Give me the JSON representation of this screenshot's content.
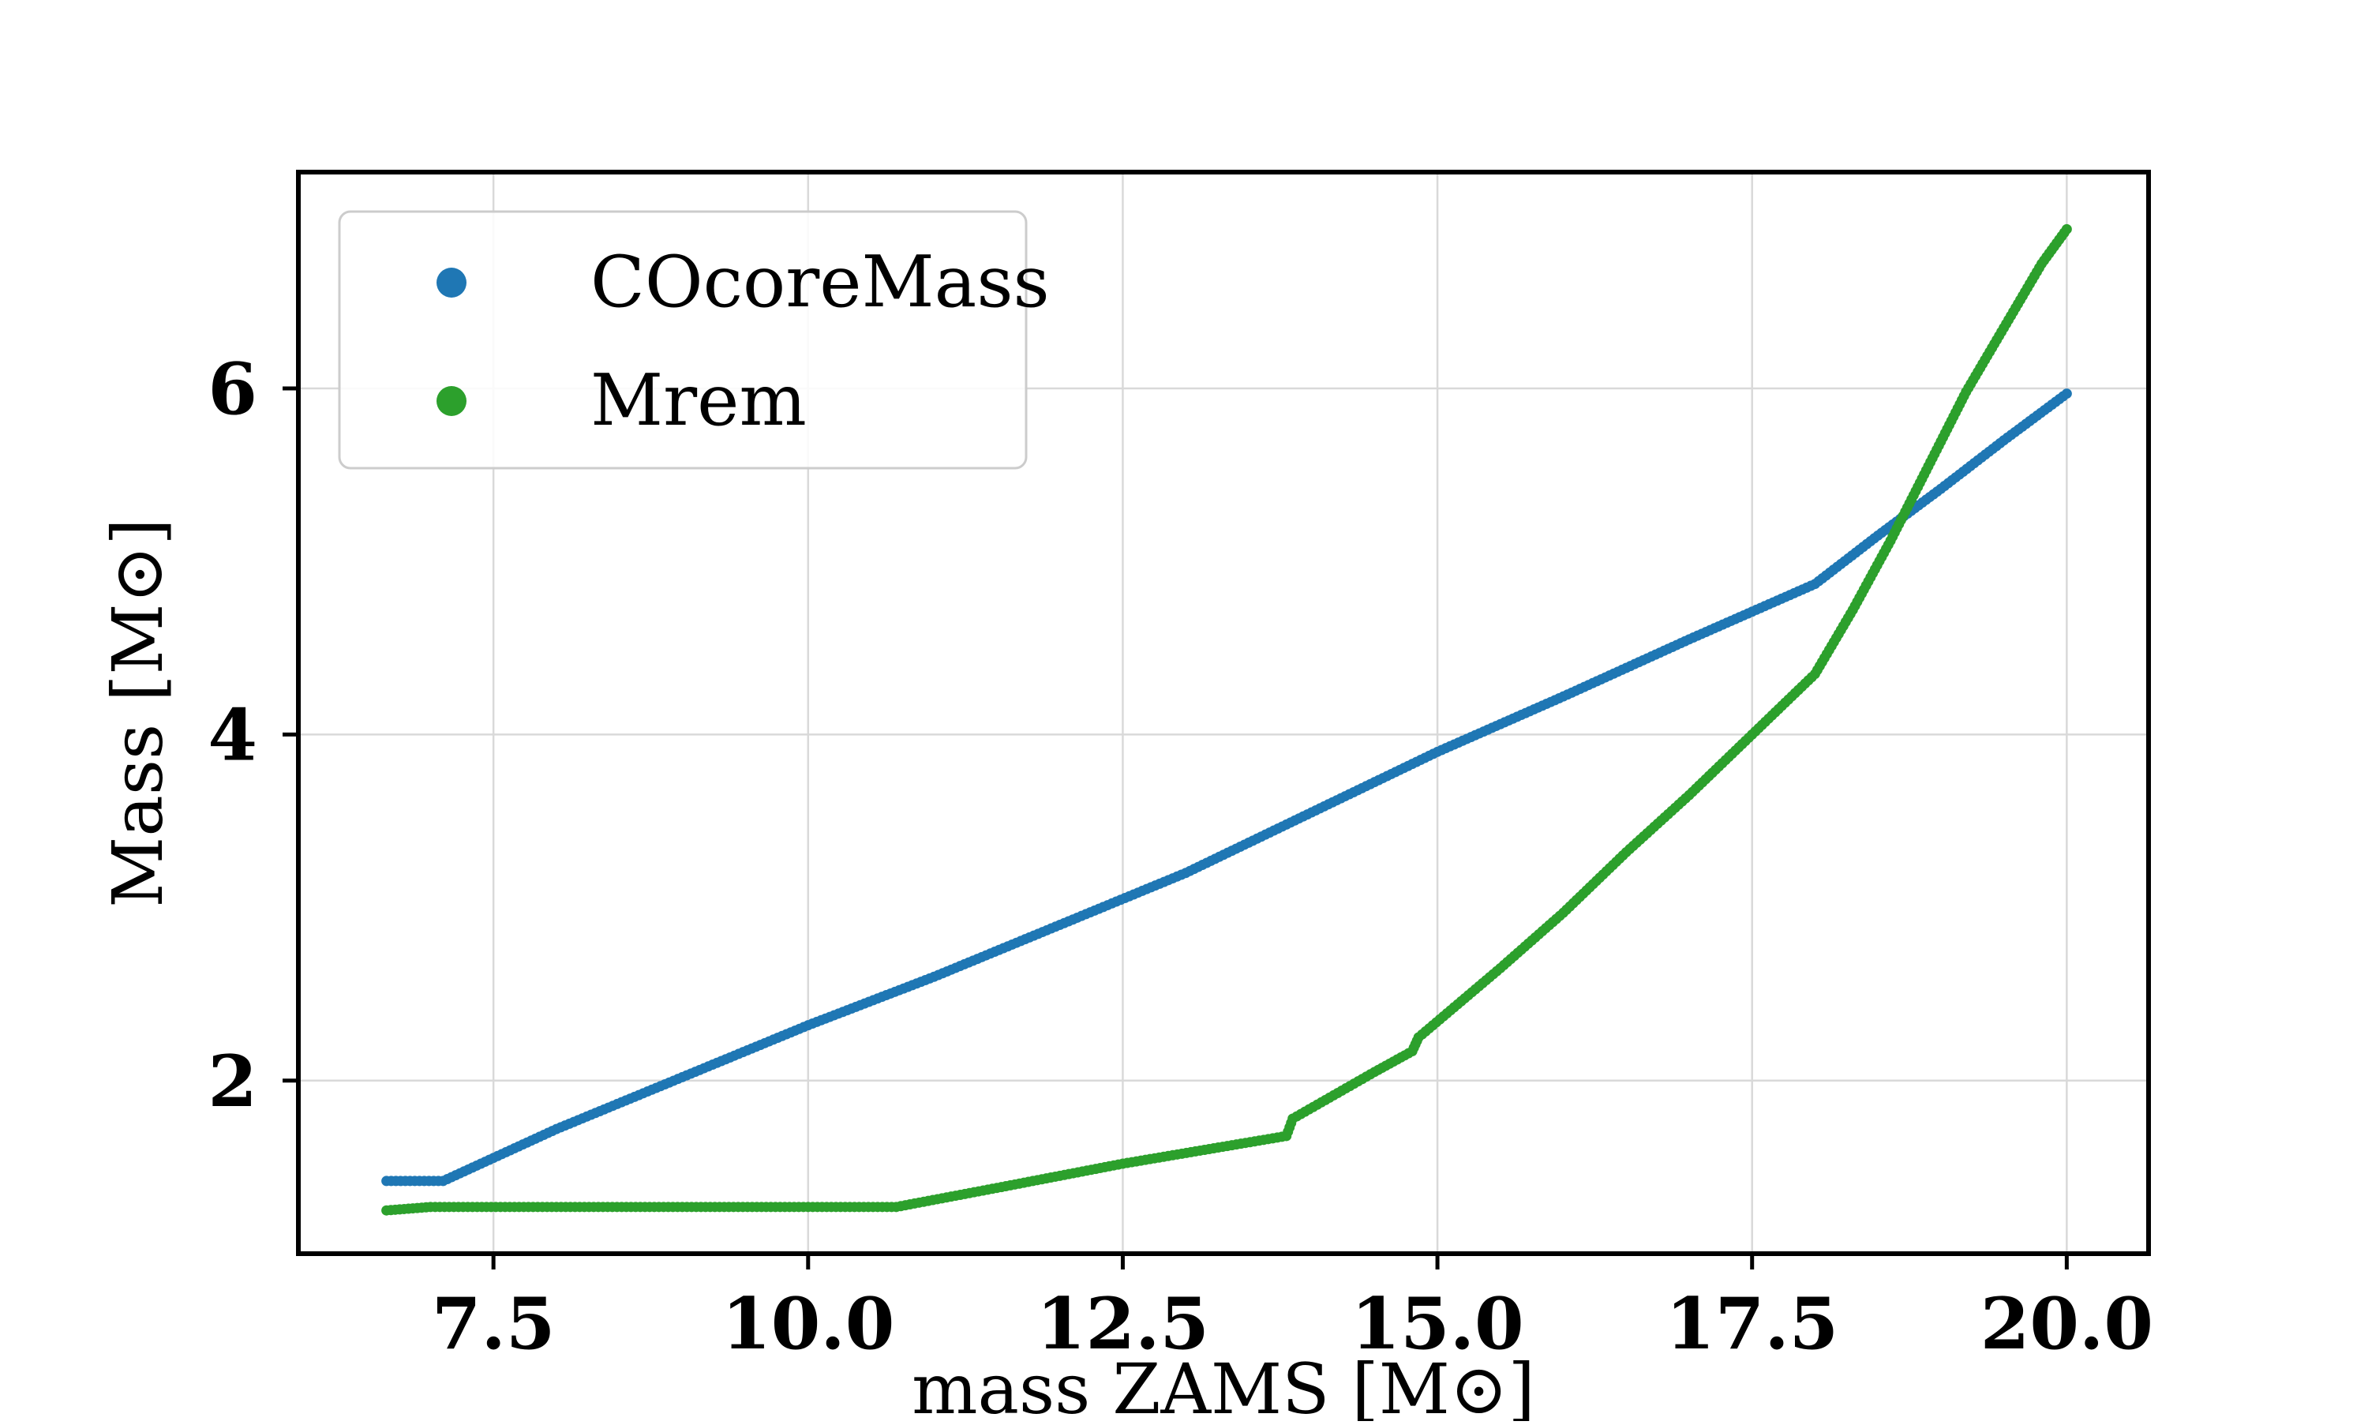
{
  "chart_data": {
    "type": "scatter",
    "xlabel": "mass ZAMS [M⊙]",
    "ylabel": "Mass [M⊙]",
    "xlim": [
      5.95,
      20.65
    ],
    "ylim": [
      1.0,
      7.25
    ],
    "x_ticks": [
      "7.5",
      "10.0",
      "12.5",
      "15.0",
      "17.5",
      "20.0"
    ],
    "y_ticks": [
      "2",
      "4",
      "6"
    ],
    "x_tick_values": [
      7.5,
      10.0,
      12.5,
      15.0,
      17.5,
      20.0
    ],
    "y_tick_values": [
      2,
      4,
      6
    ],
    "grid": true,
    "legend_position": "top-left",
    "series": [
      {
        "name": "COcoreMass",
        "color": "#1f77b4",
        "x": [
          6.65,
          7.1,
          8.0,
          9.0,
          10.0,
          11.0,
          12.0,
          13.0,
          14.0,
          15.0,
          16.0,
          17.0,
          18.0,
          18.5,
          19.0,
          19.5,
          20.0
        ],
        "y": [
          1.42,
          1.42,
          1.72,
          2.02,
          2.32,
          2.6,
          2.9,
          3.2,
          3.55,
          3.9,
          4.22,
          4.55,
          4.87,
          5.15,
          5.42,
          5.7,
          5.97
        ]
      },
      {
        "name": "Mrem",
        "color": "#2ca02c",
        "x": [
          6.65,
          7.0,
          8.0,
          9.0,
          10.0,
          10.7,
          11.5,
          12.5,
          13.8,
          13.85,
          14.5,
          14.8,
          14.85,
          15.5,
          16.0,
          16.5,
          17.0,
          17.5,
          18.0,
          18.3,
          18.6,
          18.9,
          19.2,
          19.5,
          19.8,
          20.0
        ],
        "y": [
          1.25,
          1.27,
          1.27,
          1.27,
          1.27,
          1.27,
          1.38,
          1.52,
          1.68,
          1.78,
          2.05,
          2.17,
          2.25,
          2.65,
          2.97,
          3.32,
          3.65,
          4.0,
          4.35,
          4.72,
          5.12,
          5.55,
          5.98,
          6.35,
          6.72,
          6.92
        ]
      }
    ]
  }
}
